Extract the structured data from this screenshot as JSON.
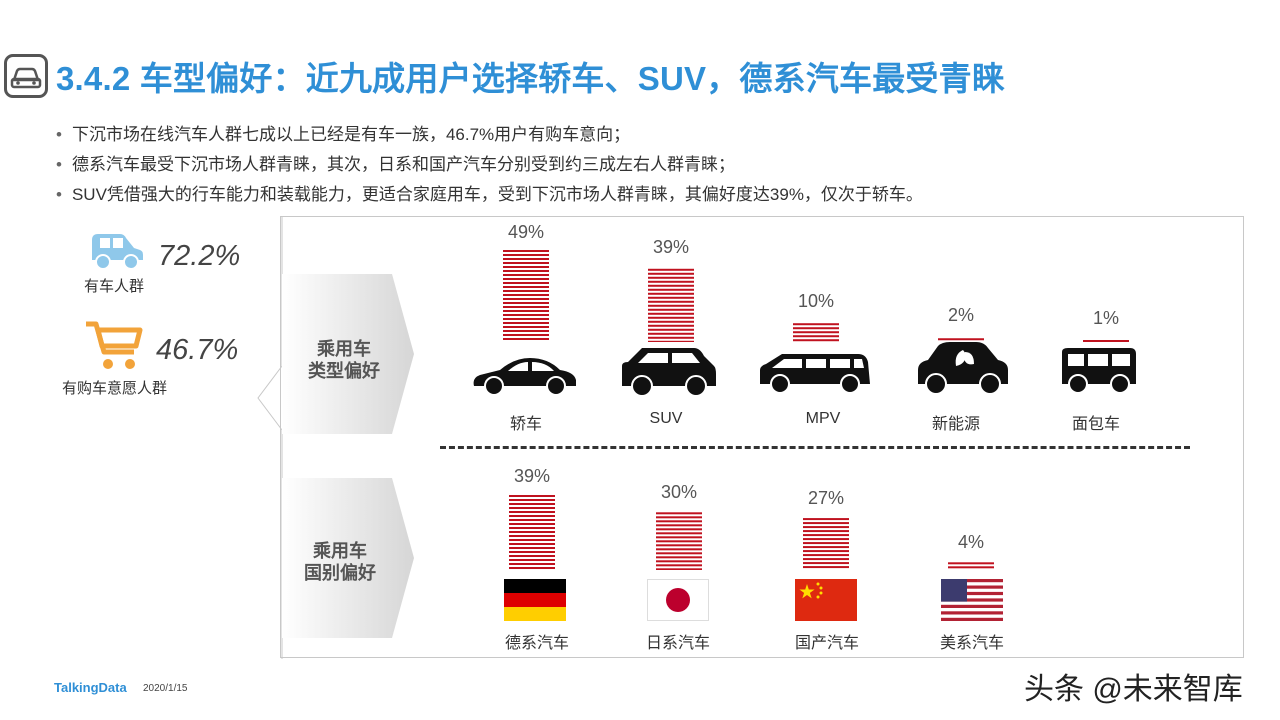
{
  "title": "3.4.2 车型偏好：近九成用户选择轿车、SUV，德系汽车最受青睐",
  "bullets": [
    "下沉市场在线汽车人群七成以上已经是有车一族，46.7%用户有购车意向；",
    "德系汽车最受下沉市场人群青睐，其次，日系和国产汽车分别受到约三成左右人群青睐；",
    "SUV凭借强大的行车能力和装载能力，更适合家庭用车，受到下沉市场人群青睐，其偏好度达39%，仅次于轿车。"
  ],
  "stats": [
    {
      "value": "72.2%",
      "label": "有车人群",
      "icon": "car-icon"
    },
    {
      "value": "46.7%",
      "label": "有购车意愿人群",
      "icon": "shopping-cart-icon"
    }
  ],
  "section_labels": {
    "type": [
      "乘用车",
      "类型偏好"
    ],
    "country": [
      "乘用车",
      "国别偏好"
    ]
  },
  "colors": {
    "accent": "#2f8fd6",
    "bar": "#c0121f",
    "icon_blue": "#8fc8ea",
    "icon_orange": "#f2a33a"
  },
  "chart_data": [
    {
      "type": "bar",
      "categories": [
        "轿车",
        "SUV",
        "MPV",
        "新能源",
        "面包车"
      ],
      "values": [
        49,
        39,
        10,
        2,
        1
      ],
      "labels": [
        "49%",
        "39%",
        "10%",
        "2%",
        "1%"
      ],
      "icons": [
        "sedan-icon",
        "suv-icon",
        "mpv-icon",
        "new-energy-car-icon",
        "van-icon"
      ]
    },
    {
      "type": "bar",
      "categories": [
        "德系汽车",
        "日系汽车",
        "国产汽车",
        "美系汽车"
      ],
      "values": [
        39,
        30,
        27,
        4
      ],
      "labels": [
        "39%",
        "30%",
        "27%",
        "4%"
      ],
      "icons": [
        "germany-flag-icon",
        "japan-flag-icon",
        "china-flag-icon",
        "usa-flag-icon"
      ]
    }
  ],
  "footer": {
    "logo": "TalkingData",
    "date": "2020/1/15"
  },
  "watermark": "头条 @未来智库"
}
